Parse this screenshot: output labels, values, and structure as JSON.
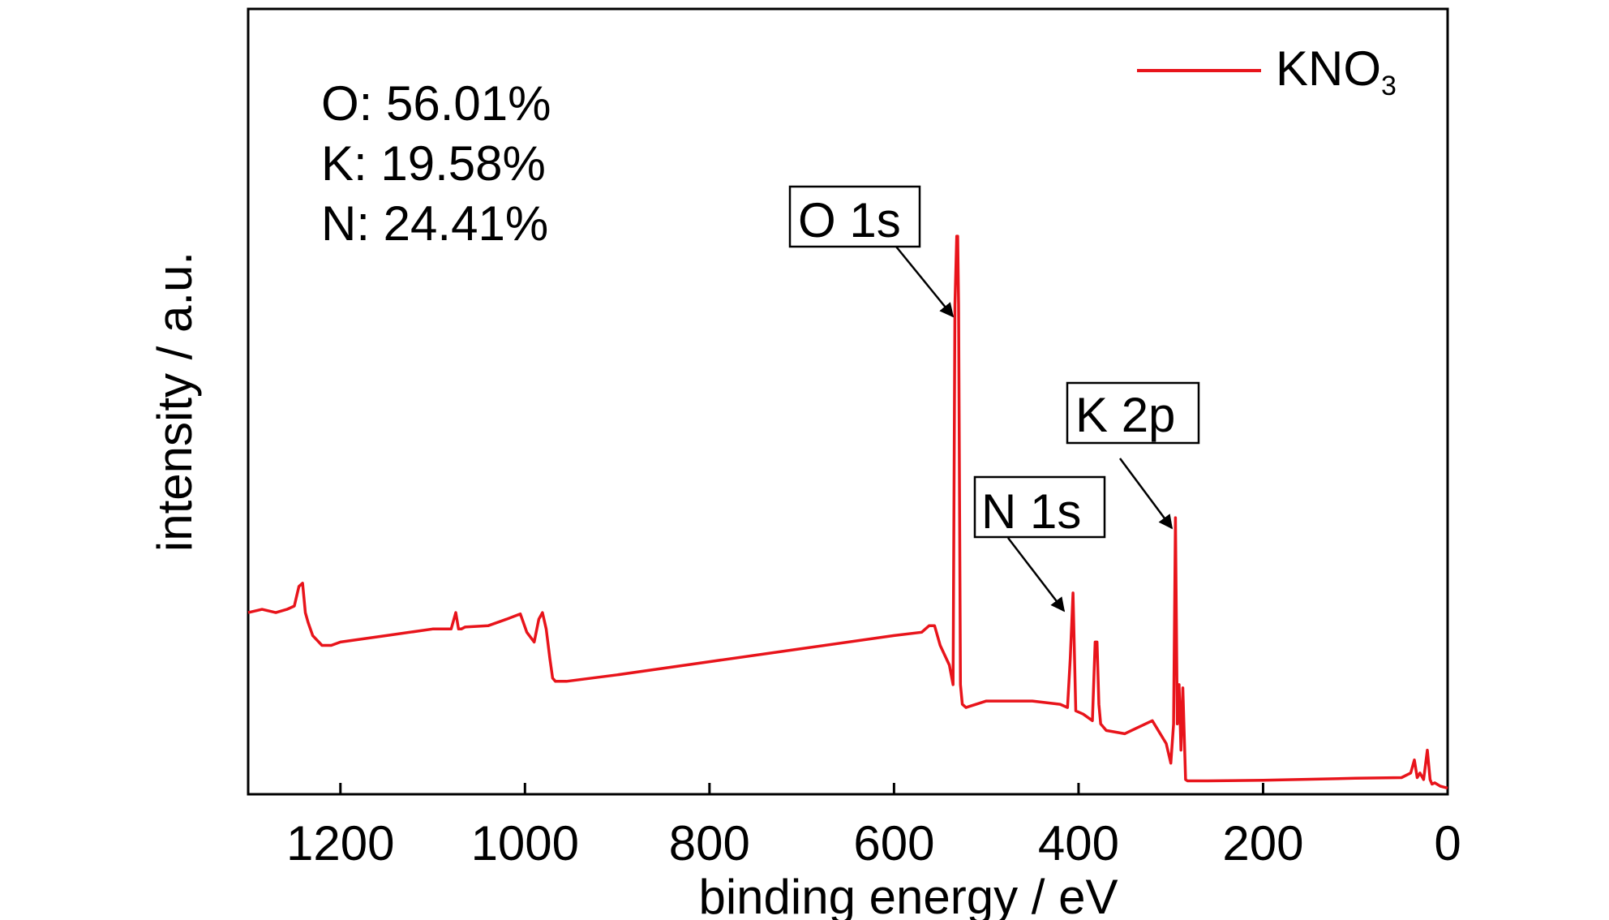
{
  "chart_data": {
    "type": "line",
    "title": "",
    "xlabel": "binding energy / eV",
    "ylabel": "intensity / a.u.",
    "xlim": [
      1300,
      0
    ],
    "x_reversed": true,
    "ylim": [
      0,
      100
    ],
    "y_ticks_shown": false,
    "grid": false,
    "x_ticks": [
      1200,
      1000,
      800,
      600,
      400,
      200,
      0
    ],
    "x_tick_labels": [
      "1200",
      "1000",
      "800",
      "600",
      "400",
      "200",
      "0"
    ],
    "legend": {
      "position": "top-right",
      "label": "KNO",
      "label_subscript": "3"
    },
    "series": [
      {
        "name": "KNO3",
        "color": "#e8141b",
        "x": [
          1300,
          1285,
          1270,
          1258,
          1250,
          1245,
          1241,
          1238,
          1235,
          1230,
          1220,
          1210,
          1200,
          1150,
          1100,
          1080,
          1075,
          1072,
          1069,
          1065,
          1040,
          1020,
          1005,
          998,
          990,
          985,
          981,
          977,
          973,
          970,
          967,
          955,
          900,
          800,
          700,
          600,
          570,
          562,
          556,
          550,
          540,
          536,
          534,
          532,
          531,
          530,
          528,
          526,
          522,
          500,
          450,
          420,
          412,
          409,
          406,
          403,
          395,
          385,
          382,
          380,
          378,
          376,
          370,
          350,
          320,
          305,
          300,
          297,
          295,
          293,
          291,
          289,
          287,
          284,
          282,
          260,
          200,
          100,
          50,
          40,
          36,
          33,
          30,
          26,
          22,
          19,
          17,
          14,
          8,
          0
        ],
        "y": [
          27,
          27.5,
          27,
          27.5,
          28,
          31,
          31.5,
          27,
          25.5,
          23.5,
          22,
          22,
          22.5,
          23.5,
          24.5,
          24.5,
          27,
          24.5,
          24.5,
          24.8,
          25,
          26,
          26.8,
          24,
          22.5,
          26,
          27,
          24.5,
          20,
          17,
          16.5,
          16.5,
          17.5,
          19.5,
          21.5,
          23.5,
          24,
          25,
          25,
          22,
          19,
          16,
          74,
          84.5,
          84.5,
          74,
          16,
          13,
          12.5,
          13.5,
          13.5,
          13,
          12.5,
          20,
          30,
          12,
          11.5,
          10.5,
          22.5,
          22.5,
          13,
          10,
          9,
          8.5,
          10.5,
          7,
          4,
          10,
          41.5,
          10,
          16,
          6,
          15.5,
          1.5,
          1.3,
          1.3,
          1.4,
          1.7,
          1.8,
          2.5,
          4.5,
          1.8,
          2.5,
          1.5,
          6,
          1.5,
          0.8,
          1,
          0.5,
          0.2
        ]
      }
    ],
    "annotations": [
      {
        "label": "O 1s",
        "x": 532,
        "y": 61
      },
      {
        "label": "N 1s",
        "x": 412,
        "y": 23
      },
      {
        "label": "K 2p",
        "x": 295,
        "y": 34
      }
    ],
    "text_block": [
      "O: 56.01%",
      "K: 19.58%",
      "N: 24.41%"
    ]
  }
}
